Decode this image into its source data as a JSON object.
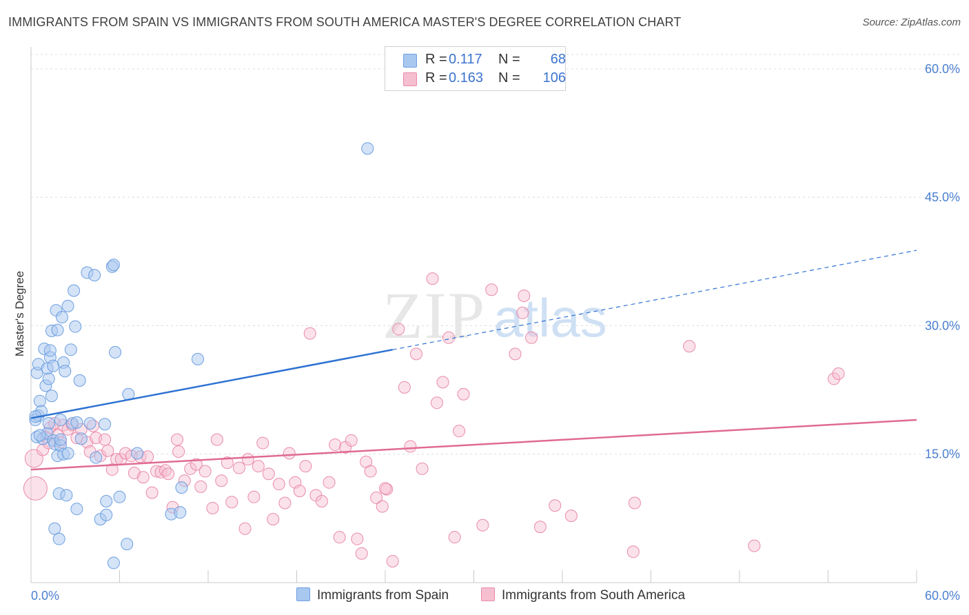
{
  "title": "IMMIGRANTS FROM SPAIN VS IMMIGRANTS FROM SOUTH AMERICA MASTER'S DEGREE CORRELATION CHART",
  "source": "Source: ZipAtlas.com",
  "colors": {
    "blue_fill": "#a9c8f0",
    "blue_stroke": "#6c9fe0",
    "blue_line": "#2e72d2",
    "pink_fill": "#f6bfd0",
    "pink_stroke": "#e98aaa",
    "pink_line": "#e06a93",
    "tick_text": "#4a7fd0",
    "grid": "#dcdcdc"
  },
  "legend": {
    "rows": [
      {
        "r_label": "R =",
        "r_value": "0.117",
        "n_label": "N =",
        "n_value": "68"
      },
      {
        "r_label": "R =",
        "r_value": "0.163",
        "n_label": "N =",
        "n_value": "106"
      }
    ]
  },
  "bottom_legend": {
    "series1": "Immigrants from Spain",
    "series2": "Immigrants from South America"
  },
  "watermark": {
    "zip": "ZIP",
    "atlas": "atlas"
  },
  "chart_data": {
    "type": "scatter",
    "title": "IMMIGRANTS FROM SPAIN VS IMMIGRANTS FROM SOUTH AMERICA MASTER'S DEGREE CORRELATION CHART",
    "xlabel": "",
    "ylabel": "Master's Degree",
    "xlim": [
      0,
      60
    ],
    "ylim": [
      0,
      62
    ],
    "x_tick_labels": [
      "0.0%",
      "60.0%"
    ],
    "y_ticks": [
      15,
      30,
      45,
      60
    ],
    "y_tick_labels": [
      "15.0%",
      "30.0%",
      "45.0%",
      "60.0%"
    ],
    "legend_position": "top-center",
    "series": [
      {
        "name": "Immigrants from Spain",
        "R": 0.117,
        "N": 68,
        "trend": {
          "x0": 0,
          "y0": 19.2,
          "x1": 24.5,
          "y1": 27.2,
          "dash_to_x": 60,
          "dash_to_y": 38.8
        },
        "points": [
          [
            0.3,
            19.0
          ],
          [
            0.5,
            19.5
          ],
          [
            0.4,
            24.5
          ],
          [
            0.5,
            25.5
          ],
          [
            0.6,
            21.2
          ],
          [
            0.4,
            17.0
          ],
          [
            0.7,
            20.0
          ],
          [
            0.8,
            16.8
          ],
          [
            1.0,
            23.0
          ],
          [
            0.9,
            27.3
          ],
          [
            1.1,
            25.0
          ],
          [
            1.2,
            18.6
          ],
          [
            1.1,
            17.4
          ],
          [
            1.2,
            23.8
          ],
          [
            1.3,
            26.3
          ],
          [
            1.4,
            21.8
          ],
          [
            1.3,
            27.1
          ],
          [
            1.5,
            16.6
          ],
          [
            1.4,
            29.4
          ],
          [
            1.7,
            31.8
          ],
          [
            1.6,
            16.2
          ],
          [
            1.5,
            25.3
          ],
          [
            1.8,
            29.5
          ],
          [
            1.8,
            14.8
          ],
          [
            1.9,
            10.4
          ],
          [
            2.0,
            19.0
          ],
          [
            2.0,
            16.0
          ],
          [
            2.1,
            31.0
          ],
          [
            2.2,
            15.0
          ],
          [
            2.2,
            25.7
          ],
          [
            2.3,
            24.7
          ],
          [
            2.4,
            10.2
          ],
          [
            2.5,
            32.3
          ],
          [
            2.5,
            15.1
          ],
          [
            2.7,
            27.2
          ],
          [
            2.8,
            18.6
          ],
          [
            2.9,
            34.1
          ],
          [
            3.0,
            29.9
          ],
          [
            3.1,
            18.7
          ],
          [
            3.1,
            8.6
          ],
          [
            3.3,
            23.6
          ],
          [
            3.4,
            16.8
          ],
          [
            3.8,
            36.2
          ],
          [
            4.0,
            18.6
          ],
          [
            4.3,
            35.9
          ],
          [
            4.4,
            14.6
          ],
          [
            4.7,
            7.4
          ],
          [
            5.0,
            18.5
          ],
          [
            5.1,
            9.5
          ],
          [
            5.1,
            7.9
          ],
          [
            5.5,
            36.9
          ],
          [
            5.6,
            37.1
          ],
          [
            5.6,
            2.3
          ],
          [
            5.7,
            26.9
          ],
          [
            6.0,
            10.0
          ],
          [
            6.5,
            4.5
          ],
          [
            6.6,
            22.0
          ],
          [
            7.2,
            15.1
          ],
          [
            9.5,
            8.0
          ],
          [
            10.1,
            8.2
          ],
          [
            10.2,
            11.1
          ],
          [
            11.3,
            26.1
          ],
          [
            1.6,
            6.3
          ],
          [
            1.9,
            5.1
          ],
          [
            2.0,
            16.7
          ],
          [
            22.8,
            50.7
          ],
          [
            0.3,
            19.4
          ],
          [
            0.6,
            17.2
          ]
        ]
      },
      {
        "name": "Immigrants from South America",
        "R": 0.163,
        "N": 106,
        "trend": {
          "x0": 0,
          "y0": 13.2,
          "x1": 60,
          "y1": 19.0
        },
        "points": [
          [
            0.2,
            14.5
          ],
          [
            0.3,
            11.0
          ],
          [
            0.8,
            15.5
          ],
          [
            1.0,
            17.0
          ],
          [
            1.2,
            16.3
          ],
          [
            1.3,
            18.1
          ],
          [
            1.6,
            18.6
          ],
          [
            1.8,
            17.2
          ],
          [
            2.0,
            16.4
          ],
          [
            2.2,
            18.4
          ],
          [
            2.5,
            17.9
          ],
          [
            2.8,
            18.4
          ],
          [
            3.1,
            16.9
          ],
          [
            3.4,
            17.9
          ],
          [
            3.8,
            16.4
          ],
          [
            4.0,
            15.3
          ],
          [
            4.2,
            18.3
          ],
          [
            4.4,
            16.9
          ],
          [
            4.7,
            14.8
          ],
          [
            5.0,
            16.7
          ],
          [
            5.2,
            15.4
          ],
          [
            5.5,
            13.2
          ],
          [
            5.8,
            14.4
          ],
          [
            6.1,
            14.4
          ],
          [
            6.4,
            15.1
          ],
          [
            6.8,
            14.8
          ],
          [
            7.0,
            12.8
          ],
          [
            7.4,
            14.7
          ],
          [
            7.6,
            12.3
          ],
          [
            7.9,
            14.7
          ],
          [
            8.2,
            10.5
          ],
          [
            8.5,
            13.0
          ],
          [
            8.8,
            12.9
          ],
          [
            9.1,
            13.1
          ],
          [
            9.3,
            12.7
          ],
          [
            9.6,
            8.8
          ],
          [
            9.9,
            16.7
          ],
          [
            10.0,
            15.3
          ],
          [
            10.4,
            11.9
          ],
          [
            10.8,
            13.3
          ],
          [
            11.2,
            13.8
          ],
          [
            11.5,
            11.2
          ],
          [
            11.8,
            13.0
          ],
          [
            12.3,
            8.7
          ],
          [
            12.6,
            16.7
          ],
          [
            12.9,
            11.9
          ],
          [
            13.3,
            14.0
          ],
          [
            13.6,
            9.4
          ],
          [
            14.1,
            13.4
          ],
          [
            14.5,
            6.3
          ],
          [
            14.7,
            14.4
          ],
          [
            15.1,
            10.0
          ],
          [
            15.4,
            13.6
          ],
          [
            15.7,
            16.3
          ],
          [
            16.1,
            12.7
          ],
          [
            16.4,
            7.4
          ],
          [
            16.8,
            11.5
          ],
          [
            17.2,
            9.3
          ],
          [
            17.5,
            15.1
          ],
          [
            17.9,
            11.7
          ],
          [
            18.2,
            10.7
          ],
          [
            18.6,
            13.6
          ],
          [
            18.9,
            29.1
          ],
          [
            19.3,
            10.2
          ],
          [
            19.7,
            9.5
          ],
          [
            20.2,
            11.7
          ],
          [
            20.6,
            16.1
          ],
          [
            20.9,
            5.3
          ],
          [
            21.3,
            15.8
          ],
          [
            21.7,
            16.6
          ],
          [
            22.1,
            5.1
          ],
          [
            22.4,
            3.4
          ],
          [
            22.7,
            14.1
          ],
          [
            23.0,
            13.0
          ],
          [
            23.4,
            9.9
          ],
          [
            23.8,
            8.9
          ],
          [
            24.1,
            10.9
          ],
          [
            24.5,
            2.5
          ],
          [
            24.9,
            29.6
          ],
          [
            25.3,
            22.8
          ],
          [
            25.7,
            15.9
          ],
          [
            26.1,
            26.7
          ],
          [
            26.5,
            13.3
          ],
          [
            27.2,
            35.5
          ],
          [
            27.5,
            21.0
          ],
          [
            27.9,
            23.4
          ],
          [
            28.3,
            28.6
          ],
          [
            28.7,
            5.3
          ],
          [
            29.0,
            17.7
          ],
          [
            29.3,
            22.0
          ],
          [
            30.6,
            6.7
          ],
          [
            31.2,
            34.2
          ],
          [
            32.8,
            26.7
          ],
          [
            33.3,
            31.5
          ],
          [
            33.4,
            33.5
          ],
          [
            33.9,
            28.6
          ],
          [
            34.5,
            6.5
          ],
          [
            35.5,
            9.0
          ],
          [
            36.6,
            7.8
          ],
          [
            40.8,
            3.6
          ],
          [
            40.9,
            9.3
          ],
          [
            44.6,
            27.6
          ],
          [
            49.0,
            4.3
          ],
          [
            54.4,
            23.8
          ],
          [
            54.7,
            24.4
          ],
          [
            24.0,
            11.0
          ]
        ]
      }
    ]
  }
}
